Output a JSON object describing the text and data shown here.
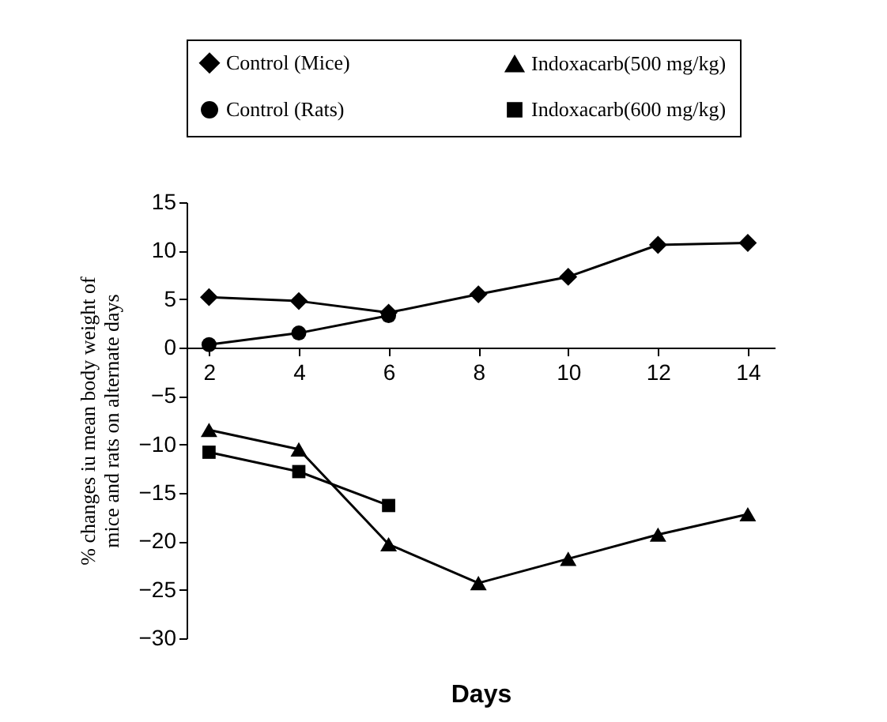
{
  "chart_data": {
    "type": "line",
    "xlabel": "Days",
    "ylabel": "% changes iu mean body weight of mice and rats on alternate days",
    "x": [
      2,
      4,
      6,
      8,
      10,
      12,
      14
    ],
    "xlim": [
      1.5,
      14.6
    ],
    "xticks": [
      2,
      4,
      6,
      8,
      10,
      12,
      14
    ],
    "ylim": [
      -30,
      15
    ],
    "yticks": [
      -30,
      -25,
      -20,
      -15,
      -10,
      -5,
      0,
      5,
      10,
      15
    ],
    "grid": false,
    "legend": "top",
    "series": [
      {
        "name": "Control (Mice)",
        "color": "#000000",
        "marker": "diamond",
        "values": [
          5.2,
          4.8,
          3.6,
          5.5,
          7.3,
          10.6,
          10.8
        ]
      },
      {
        "name": "Indoxacarb(500 mg/kg)",
        "color": "#000000",
        "marker": "triangle",
        "values": [
          -8.5,
          -10.5,
          -20.3,
          -24.3,
          -21.8,
          -19.3,
          -17.2
        ]
      },
      {
        "name": "Control (Rats)",
        "color": "#000000",
        "marker": "circle",
        "values": [
          0.3,
          1.5,
          3.3,
          null,
          null,
          null,
          null
        ]
      },
      {
        "name": "Indoxacarb(600 mg/kg)",
        "color": "#000000",
        "marker": "square",
        "values": [
          -10.8,
          -12.8,
          -16.3,
          null,
          null,
          null,
          null
        ]
      }
    ]
  }
}
